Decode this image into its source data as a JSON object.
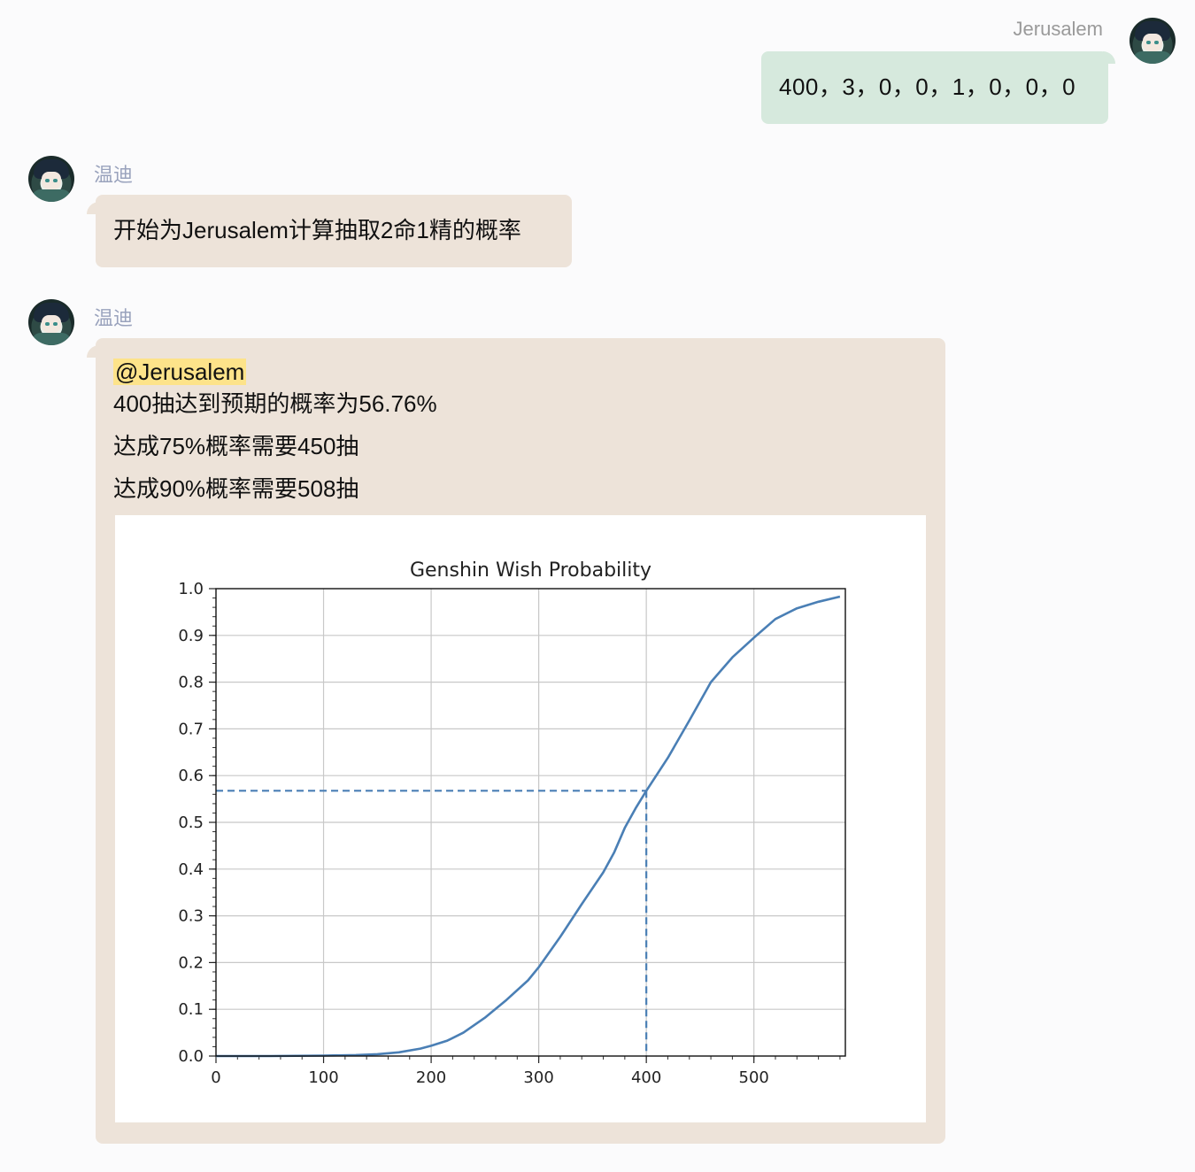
{
  "messages": [
    {
      "sender": "Jerusalem",
      "side": "right",
      "text": "400，3，0，0，1，0，0，0"
    },
    {
      "sender": "温迪",
      "side": "left",
      "text": "开始为Jerusalem计算抽取2命1精的概率"
    },
    {
      "sender": "温迪",
      "side": "left",
      "mention": "@Jerusalem",
      "lines": [
        "400抽达到预期的概率为56.76%",
        "达成75%概率需要450抽",
        "达成90%概率需要508抽"
      ]
    }
  ],
  "colors": {
    "user_bubble": "#d6e9dd",
    "bot_bubble": "#ede3d9",
    "mention_highlight": "#fde38a",
    "line": "#4a7fb5"
  },
  "chart_data": {
    "type": "line",
    "title": "Genshin Wish Probability",
    "xlabel": "",
    "ylabel": "",
    "xlim": [
      0,
      585
    ],
    "ylim": [
      0,
      1.0
    ],
    "xticks": [
      0,
      100,
      200,
      300,
      400,
      500
    ],
    "yticks": [
      0.0,
      0.1,
      0.2,
      0.3,
      0.4,
      0.5,
      0.6,
      0.7,
      0.8,
      0.9,
      1.0
    ],
    "grid": true,
    "series": [
      {
        "x": [
          0,
          50,
          100,
          130,
          150,
          170,
          190,
          200,
          215,
          230,
          250,
          270,
          290,
          300,
          320,
          340,
          360,
          370,
          380,
          390,
          400,
          420,
          440,
          460,
          480,
          500,
          520,
          540,
          560,
          580
        ],
        "y": [
          0.0,
          0.0,
          0.001,
          0.002,
          0.004,
          0.008,
          0.016,
          0.022,
          0.033,
          0.05,
          0.082,
          0.12,
          0.162,
          0.19,
          0.255,
          0.325,
          0.393,
          0.435,
          0.488,
          0.53,
          0.5676,
          0.638,
          0.718,
          0.8,
          0.853,
          0.895,
          0.935,
          0.958,
          0.972,
          0.983
        ]
      }
    ],
    "marker": {
      "x": 400,
      "y": 0.5676
    }
  }
}
